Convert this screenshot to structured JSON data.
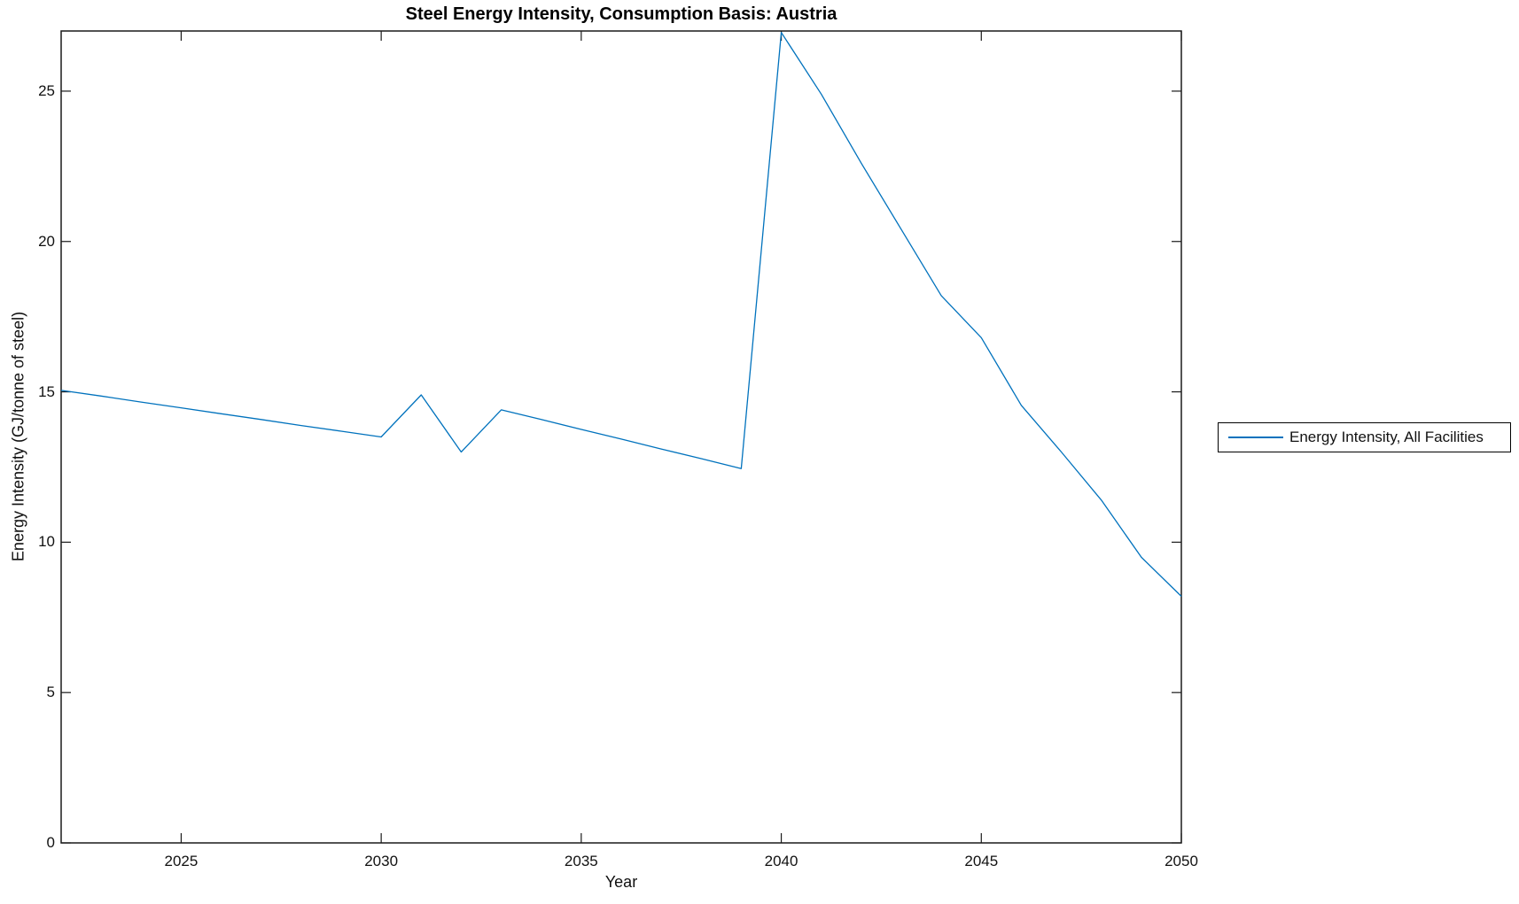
{
  "figure": {
    "background": "#ffffff"
  },
  "chart_data": {
    "type": "line",
    "title": "Steel Energy Intensity, Consumption Basis: Austria",
    "xlabel": "Year",
    "ylabel": "Energy Intensity (GJ/tonne of steel)",
    "xlim": [
      2022,
      2050
    ],
    "ylim": [
      0,
      27
    ],
    "xticks": [
      2025,
      2030,
      2035,
      2040,
      2045,
      2050
    ],
    "yticks": [
      0,
      5,
      10,
      15,
      20,
      25
    ],
    "grid": false,
    "legend_position": "outside-right",
    "axis_color": "#1a1a1a",
    "series": [
      {
        "name": "Energy Intensity, All Facilities",
        "color": "#0072BD",
        "x": [
          2022,
          2023,
          2024,
          2025,
          2026,
          2027,
          2028,
          2029,
          2030,
          2031,
          2032,
          2033,
          2034,
          2035,
          2036,
          2037,
          2038,
          2039,
          2040,
          2041,
          2042,
          2043,
          2044,
          2045,
          2046,
          2047,
          2048,
          2049,
          2050
        ],
        "values": [
          15.05,
          14.86,
          14.66,
          14.47,
          14.27,
          14.08,
          13.88,
          13.69,
          13.5,
          14.9,
          13.0,
          14.4,
          14.08,
          13.75,
          13.43,
          13.1,
          12.78,
          12.45,
          26.95,
          24.9,
          22.6,
          20.4,
          18.2,
          16.8,
          14.55,
          13.0,
          11.4,
          9.5,
          8.2
        ]
      }
    ]
  },
  "legend": {
    "entries": [
      {
        "label": "Energy Intensity, All Facilities",
        "color": "#0072BD"
      }
    ]
  }
}
